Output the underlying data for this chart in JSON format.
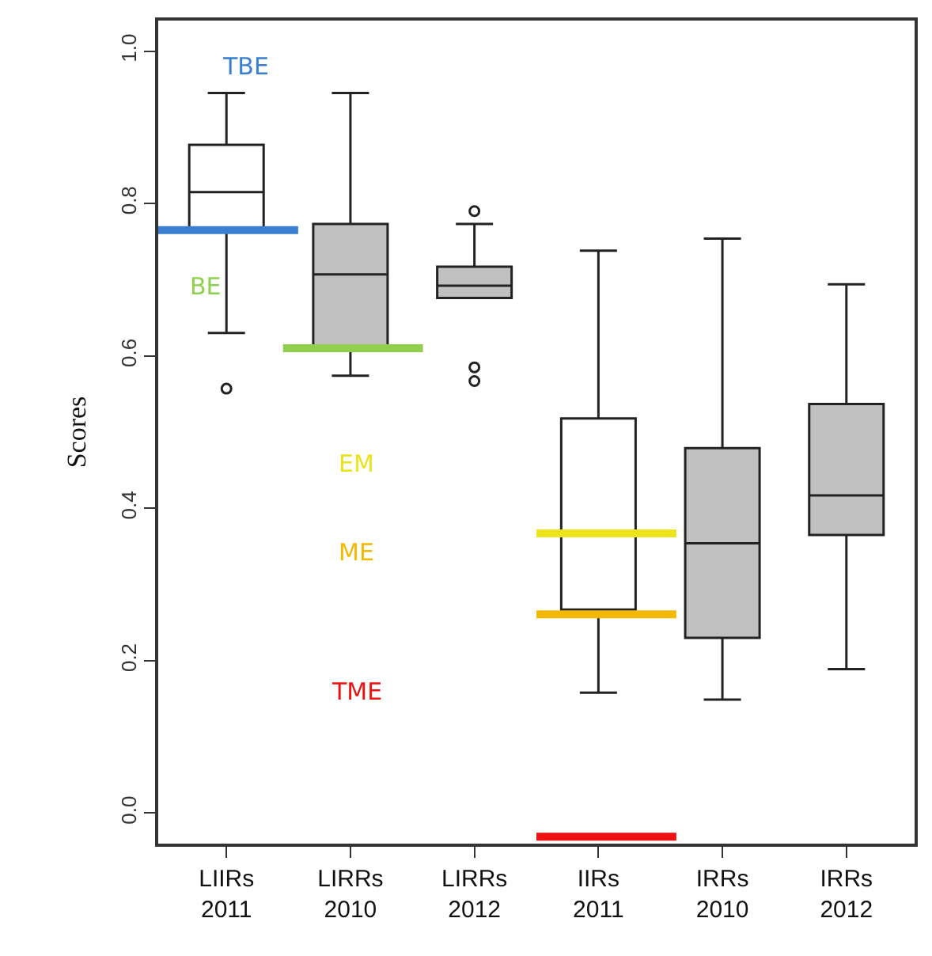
{
  "chart_data": {
    "type": "box",
    "ylabel": "Scores",
    "categories": [
      "LIIRs 2011",
      "LIRRs 2010",
      "LIRRs 2012",
      "IIRs 2011",
      "IRRs 2010",
      "IRRs 2012"
    ],
    "colors": [
      "#ffffff",
      "#c0c0c0",
      "#c0c0c0",
      "#ffffff",
      "#c0c0c0",
      "#c0c0c0"
    ],
    "boxes": [
      {
        "low": 0.63,
        "q1": 0.767,
        "median": 0.815,
        "q3": 0.877,
        "high": 0.945,
        "outliers": [
          0.557
        ]
      },
      {
        "low": 0.574,
        "q1": 0.607,
        "median": 0.707,
        "q3": 0.773,
        "high": 0.945
      },
      {
        "low": 0.676,
        "q1": 0.676,
        "median": 0.692,
        "q3": 0.717,
        "high": 0.773,
        "outliers": [
          0.79,
          0.585,
          0.567
        ]
      },
      {
        "low": 0.158,
        "q1": 0.265,
        "median": 0.265,
        "q3": 0.518,
        "high": 0.738
      },
      {
        "low": 0.149,
        "q1": 0.23,
        "median": 0.354,
        "q3": 0.479,
        "high": 0.754
      },
      {
        "low": 0.189,
        "q1": 0.365,
        "median": 0.417,
        "q3": 0.537,
        "high": 0.694
      }
    ],
    "ylim": [
      -0.04,
      1.04
    ],
    "yticks": [
      {
        "value": 0,
        "label": "0.0"
      },
      0.2,
      0.4,
      0.6,
      0.8,
      {
        "value": 1,
        "label": "1.0"
      }
    ],
    "ref_lines": [
      {
        "axis": "y",
        "value": 0.765,
        "label": "TBE",
        "color": "#3a7fd0"
      },
      {
        "axis": "y",
        "value": 0.61,
        "label": "BE",
        "color": "#8fd14f"
      },
      {
        "axis": "y",
        "value": 0.367,
        "label": "EM",
        "color": "#ebe41a"
      },
      {
        "axis": "y",
        "value": 0.261,
        "label": "ME",
        "color": "#f5b800"
      },
      {
        "axis": "y",
        "value": -0.031,
        "label": "TME",
        "color": "#ee1111"
      }
    ]
  }
}
